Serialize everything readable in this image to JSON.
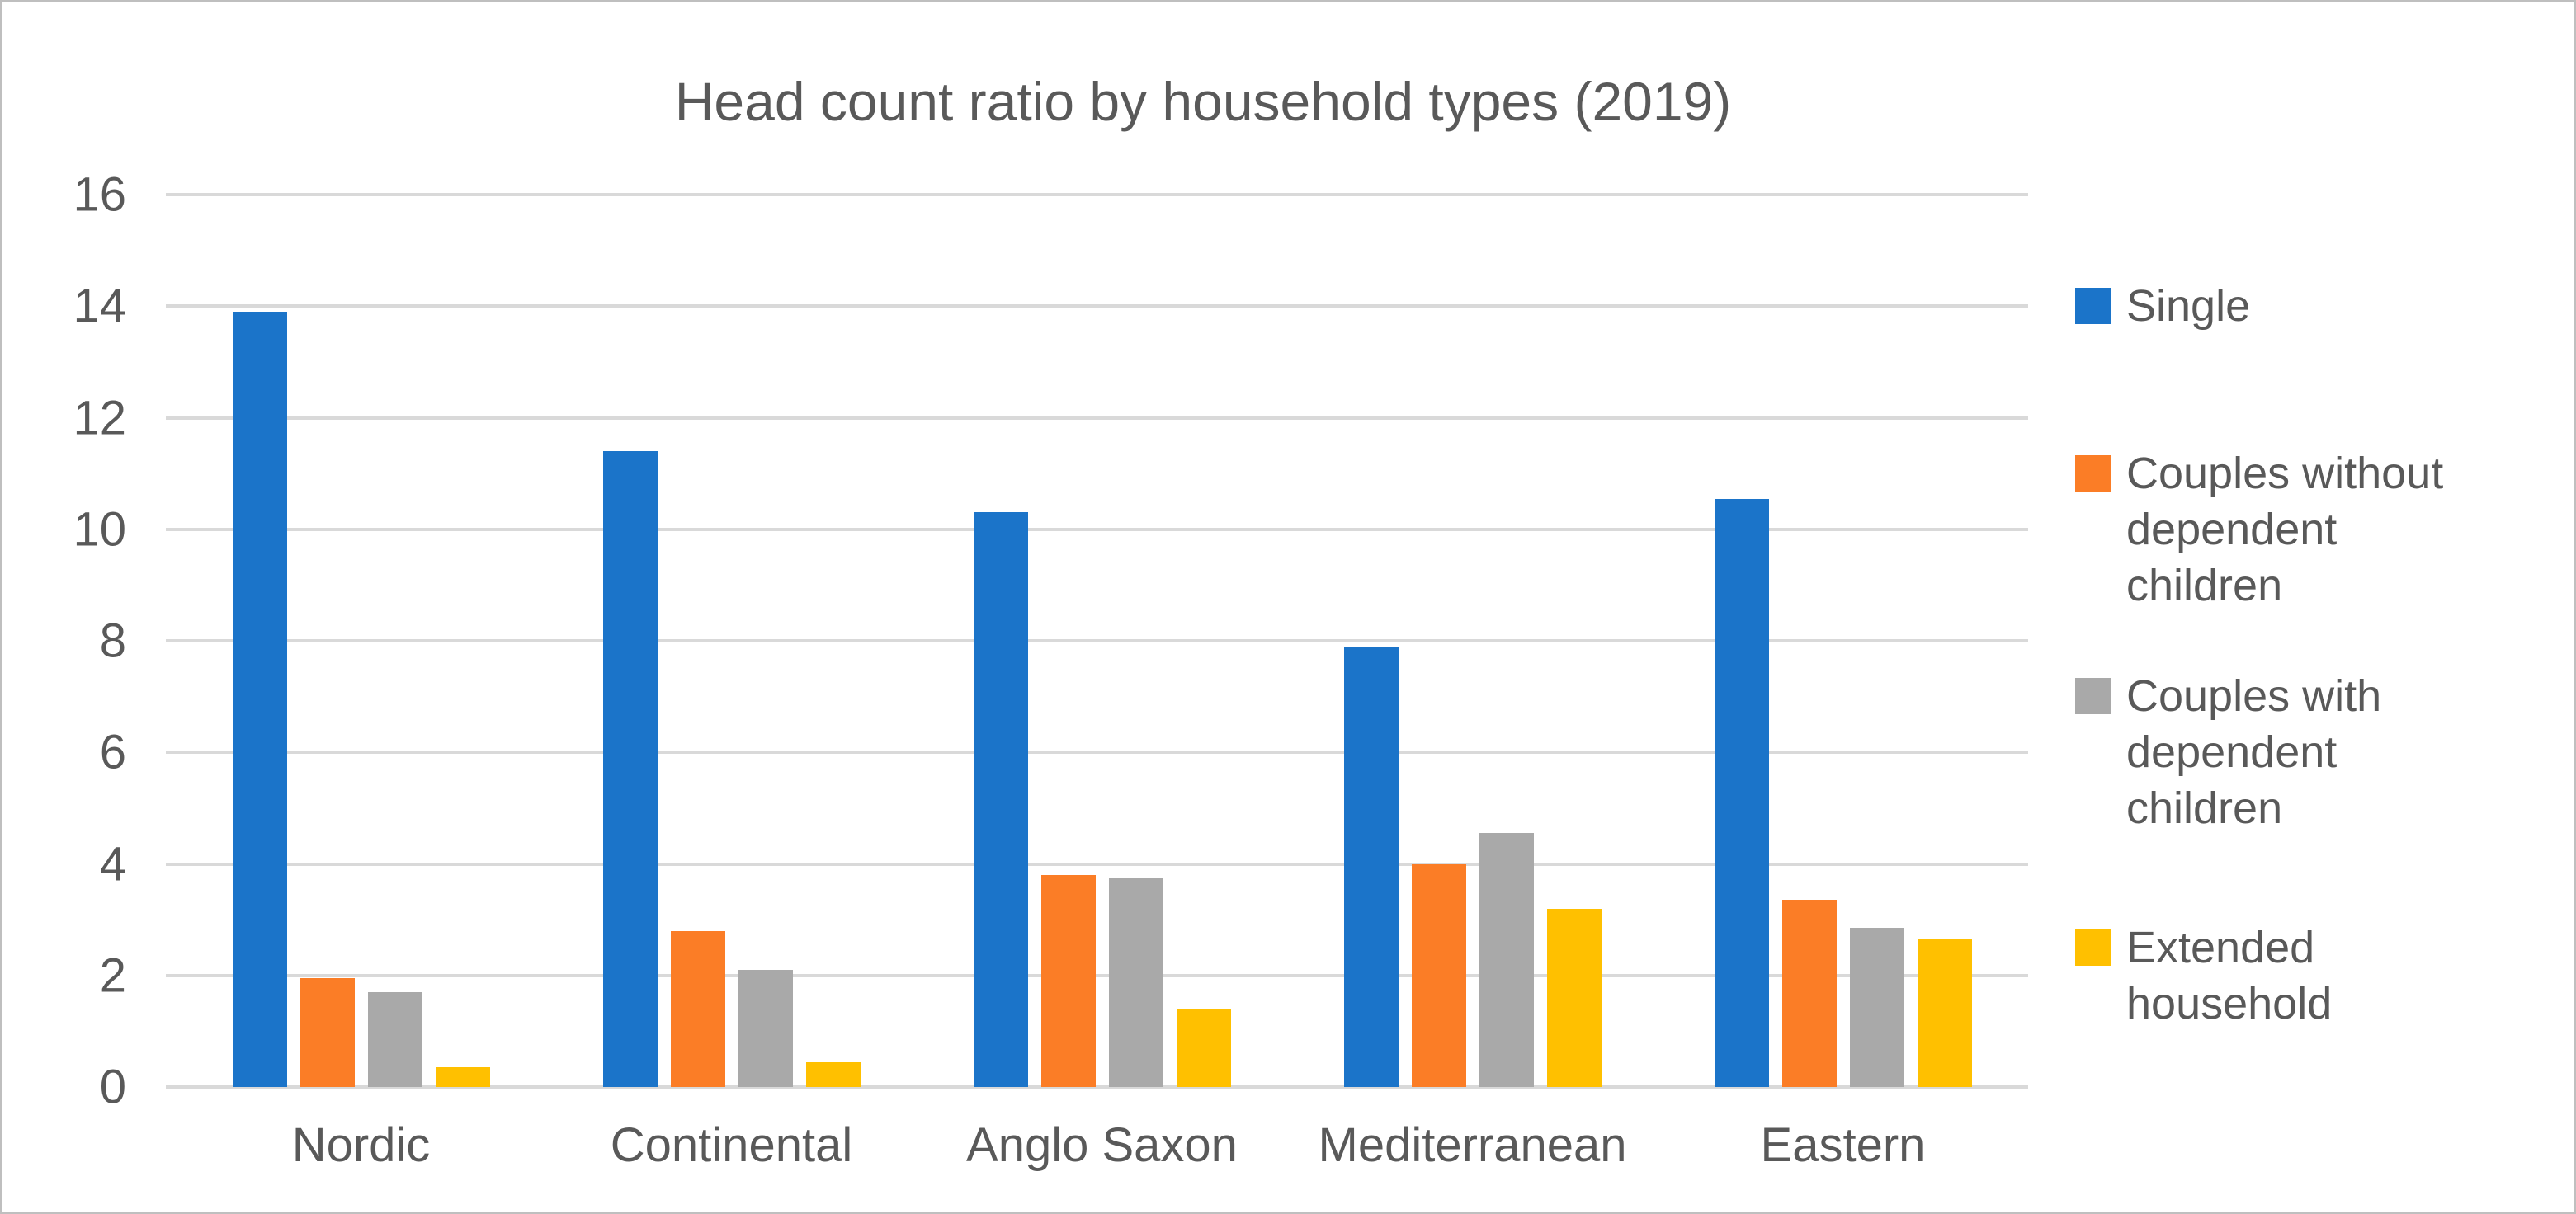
{
  "chart_data": {
    "type": "bar",
    "title": "Head count ratio by household types (2019)",
    "categories": [
      "Nordic",
      "Continental",
      "Anglo Saxon",
      "Mediterranean",
      "Eastern"
    ],
    "series": [
      {
        "name": "Single",
        "color": "#1B74C9",
        "values": [
          13.9,
          11.4,
          10.3,
          7.9,
          10.55
        ]
      },
      {
        "name": "Couples without dependent children",
        "color": "#FB7D26",
        "values": [
          1.95,
          2.8,
          3.8,
          4.0,
          3.35
        ]
      },
      {
        "name": "Couples with dependent children",
        "color": "#A9A9A9",
        "values": [
          1.7,
          2.1,
          3.75,
          4.55,
          2.85
        ]
      },
      {
        "name": "Extended household",
        "color": "#FFC000",
        "values": [
          0.35,
          0.45,
          1.4,
          3.2,
          2.65
        ]
      }
    ],
    "ylim": [
      0,
      16
    ],
    "yticks": [
      0,
      2,
      4,
      6,
      8,
      10,
      12,
      14,
      16
    ],
    "grid": true,
    "legend_position": "right",
    "colors": {
      "gridline": "#D9D9D9",
      "text": "#595959",
      "background": "#FFFFFF",
      "border": "#BFBFBF"
    }
  }
}
